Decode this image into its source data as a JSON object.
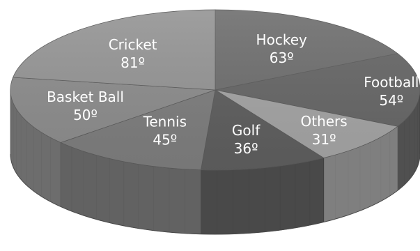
{
  "chart_data": {
    "type": "pie",
    "title": "",
    "categories": [
      "Hockey",
      "Football",
      "Others",
      "Golf",
      "Tennis",
      "Basket Ball",
      "Cricket"
    ],
    "values": [
      63,
      54,
      31,
      36,
      45,
      50,
      81
    ],
    "value_labels": [
      "63º",
      "54º",
      "31º",
      "36º",
      "45º",
      "50º",
      "81º"
    ],
    "unit": "degrees",
    "total": 360,
    "style": "3d",
    "colors": {
      "Hockey": "#6e6e6e",
      "Football": "#666666",
      "Others": "#a3a3a3",
      "Golf": "#5e5e5e",
      "Tennis": "#7d7d7d",
      "Basket Ball": "#8c8c8c",
      "Cricket": "#949494"
    }
  }
}
